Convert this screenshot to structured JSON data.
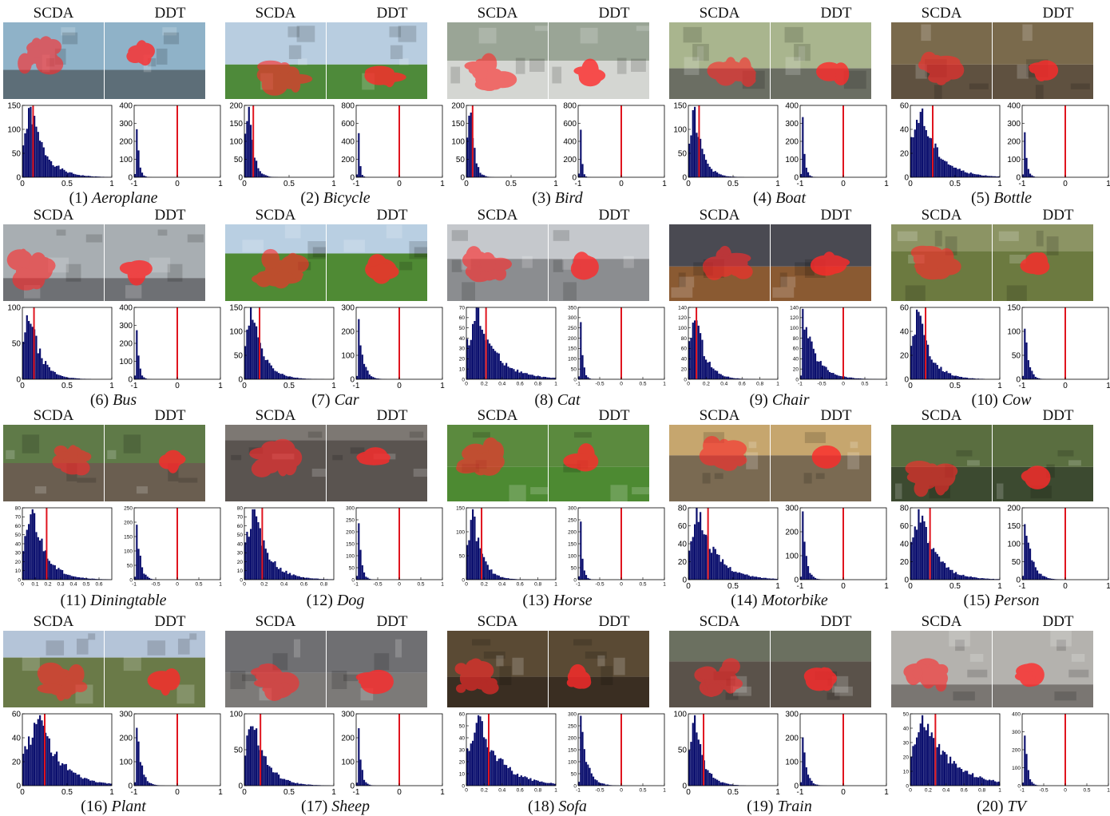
{
  "labels": {
    "left": "SCDA",
    "right": "DDT"
  },
  "colors": {
    "bar": "#0b0f6e",
    "threshold": "#e0141e",
    "mask": "#ff2a2a"
  },
  "panels": [
    {
      "num": "(1)",
      "name": "Aeroplane",
      "scene": {
        "sky": "#8fb2c8",
        "ground": "#5d6e78",
        "horizon": 0.62
      },
      "left_hist": {
        "ymax": 150,
        "yticks": [
          0,
          50,
          100,
          150
        ],
        "xmin": 0,
        "xmax": 1,
        "xticks": [
          0,
          0.5,
          1
        ],
        "threshold": 0.12,
        "decay": 0.16
      },
      "right_hist": {
        "ymax": 400,
        "yticks": [
          0,
          100,
          200,
          300,
          400
        ],
        "xmin": -1,
        "xmax": 1,
        "xticks": [
          -1,
          0,
          1
        ],
        "threshold": 0,
        "decay": 0.05
      }
    },
    {
      "num": "(2)",
      "name": "Bicycle",
      "scene": {
        "sky": "#b8cde0",
        "ground": "#4e8a3a",
        "horizon": 0.55
      },
      "left_hist": {
        "ymax": 200,
        "yticks": [
          0,
          50,
          100,
          150,
          200
        ],
        "xmin": 0,
        "xmax": 1,
        "xticks": [
          0,
          0.5,
          1
        ],
        "threshold": 0.1,
        "decay": 0.05
      },
      "right_hist": {
        "ymax": 800,
        "yticks": [
          0,
          200,
          400,
          600,
          800
        ],
        "xmin": -1,
        "xmax": 1,
        "xticks": [
          -1,
          0,
          1
        ],
        "threshold": 0,
        "decay": 0.03
      }
    },
    {
      "num": "(3)",
      "name": "Bird",
      "scene": {
        "sky": "#9aa596",
        "ground": "#d4d6d2",
        "horizon": 0.5
      },
      "left_hist": {
        "ymax": 200,
        "yticks": [
          0,
          50,
          100,
          150,
          200
        ],
        "xmin": 0,
        "xmax": 1,
        "xticks": [
          0,
          0.5,
          1
        ],
        "threshold": 0.07,
        "decay": 0.04
      },
      "right_hist": {
        "ymax": 800,
        "yticks": [
          0,
          200,
          400,
          600,
          800
        ],
        "xmin": -1,
        "xmax": 1,
        "xticks": [
          -1,
          0,
          1
        ],
        "threshold": 0,
        "decay": 0.03
      }
    },
    {
      "num": "(4)",
      "name": "Boat",
      "scene": {
        "sky": "#a9b58e",
        "ground": "#6b6e63",
        "horizon": 0.6
      },
      "left_hist": {
        "ymax": 150,
        "yticks": [
          0,
          50,
          100,
          150
        ],
        "xmin": 0,
        "xmax": 1,
        "xticks": [
          0,
          0.5,
          1
        ],
        "threshold": 0.12,
        "decay": 0.09
      },
      "right_hist": {
        "ymax": 400,
        "yticks": [
          0,
          100,
          200,
          300,
          400
        ],
        "xmin": -1,
        "xmax": 1,
        "xticks": [
          -1,
          0,
          1
        ],
        "threshold": 0,
        "decay": 0.05
      }
    },
    {
      "num": "(5)",
      "name": "Bottle",
      "scene": {
        "sky": "#7a6a4c",
        "ground": "#5f5140",
        "horizon": 0.55
      },
      "left_hist": {
        "ymax": 60,
        "yticks": [
          0,
          20,
          40,
          60
        ],
        "xmin": 0,
        "xmax": 1,
        "xticks": [
          0,
          0.5,
          1
        ],
        "threshold": 0.25,
        "decay": 0.2
      },
      "right_hist": {
        "ymax": 400,
        "yticks": [
          0,
          100,
          200,
          300,
          400
        ],
        "xmin": -1,
        "xmax": 1,
        "xticks": [
          -1,
          0,
          1
        ],
        "threshold": 0,
        "decay": 0.05
      }
    },
    {
      "num": "(6)",
      "name": "Bus",
      "scene": {
        "sky": "#a8aeb2",
        "ground": "#6e7074",
        "horizon": 0.7
      },
      "left_hist": {
        "ymax": 100,
        "yticks": [
          0,
          50,
          100
        ],
        "xmin": 0,
        "xmax": 1,
        "xticks": [
          0,
          0.5,
          1
        ],
        "threshold": 0.13,
        "decay": 0.12
      },
      "right_hist": {
        "ymax": 400,
        "yticks": [
          0,
          100,
          200,
          300,
          400
        ],
        "xmin": -1,
        "xmax": 1,
        "xticks": [
          -1,
          0,
          1
        ],
        "threshold": 0,
        "decay": 0.05
      }
    },
    {
      "num": "(7)",
      "name": "Car",
      "scene": {
        "sky": "#b9cfe2",
        "ground": "#4f8a34",
        "horizon": 0.38
      },
      "left_hist": {
        "ymax": 150,
        "yticks": [
          0,
          50,
          100,
          150
        ],
        "xmin": 0,
        "xmax": 1,
        "xticks": [
          0,
          0.5,
          1
        ],
        "threshold": 0.17,
        "decay": 0.13
      },
      "right_hist": {
        "ymax": 300,
        "yticks": [
          0,
          100,
          200,
          300
        ],
        "xmin": -1,
        "xmax": 1,
        "xticks": [
          -1,
          0,
          1
        ],
        "threshold": 0,
        "decay": 0.1
      }
    },
    {
      "num": "(8)",
      "name": "Cat",
      "scene": {
        "sky": "#c5c8cc",
        "ground": "#8b8d90",
        "horizon": 0.45
      },
      "left_hist": {
        "ymax": 70,
        "yticks": [
          0,
          10,
          20,
          30,
          40,
          50,
          60,
          70
        ],
        "xmin": 0,
        "xmax": 1,
        "xticks": [
          0,
          0.2,
          0.4,
          0.6,
          0.8,
          1
        ],
        "threshold": 0.22,
        "decay": 0.22
      },
      "right_hist": {
        "ymax": 350,
        "yticks": [
          0,
          50,
          100,
          150,
          200,
          250,
          300,
          350
        ],
        "xmin": -1,
        "xmax": 1,
        "xticks": [
          -1,
          -0.5,
          0,
          0.5,
          1
        ],
        "threshold": 0,
        "decay": 0.05
      }
    },
    {
      "num": "(9)",
      "name": "Chair",
      "scene": {
        "sky": "#4a4a52",
        "ground": "#8a5a32",
        "horizon": 0.55
      },
      "left_hist": {
        "ymax": 140,
        "yticks": [
          0,
          20,
          40,
          60,
          80,
          100,
          120,
          140
        ],
        "xmin": 0,
        "xmax": 1,
        "xticks": [
          0,
          0.2,
          0.4,
          0.6,
          0.8,
          1
        ],
        "threshold": 0.09,
        "decay": 0.11
      },
      "right_hist": {
        "ymax": 140,
        "yticks": [
          0,
          20,
          40,
          60,
          80,
          100,
          120,
          140
        ],
        "xmin": -1,
        "xmax": 1,
        "xticks": [
          -1,
          -0.5,
          0,
          0.5,
          1
        ],
        "threshold": 0,
        "decay": 0.3
      }
    },
    {
      "num": "(10)",
      "name": "Cow",
      "scene": {
        "sky": "#8c9464",
        "ground": "#6c7a40",
        "horizon": 0.35
      },
      "left_hist": {
        "ymax": 60,
        "yticks": [
          0,
          20,
          40,
          60
        ],
        "xmin": 0,
        "xmax": 1,
        "xticks": [
          0,
          0.5,
          1
        ],
        "threshold": 0.17,
        "decay": 0.14
      },
      "right_hist": {
        "ymax": 150,
        "yticks": [
          0,
          50,
          100,
          150
        ],
        "xmin": -1,
        "xmax": 1,
        "xticks": [
          -1,
          0,
          1
        ],
        "threshold": 0,
        "decay": 0.08
      }
    },
    {
      "num": "(11)",
      "name": "Diningtable",
      "scene": {
        "sky": "#5f7a48",
        "ground": "#6a5e50",
        "horizon": 0.5
      },
      "left_hist": {
        "ymax": 80,
        "yticks": [
          0,
          10,
          20,
          30,
          40,
          50,
          60,
          70,
          80
        ],
        "xmin": 0,
        "xmax": 0.7,
        "xticks": [
          0,
          0.1,
          0.2,
          0.3,
          0.4,
          0.5,
          0.6
        ],
        "threshold": 0.19,
        "decay": 0.11
      },
      "right_hist": {
        "ymax": 250,
        "yticks": [
          0,
          50,
          100,
          150,
          200,
          250
        ],
        "xmin": -1,
        "xmax": 1,
        "xticks": [
          -1,
          -0.5,
          0,
          0.5,
          1
        ],
        "threshold": 0,
        "decay": 0.08
      }
    },
    {
      "num": "(12)",
      "name": "Dog",
      "scene": {
        "sky": "#7d7873",
        "ground": "#5a5450",
        "horizon": 0.2
      },
      "left_hist": {
        "ymax": 80,
        "yticks": [
          0,
          10,
          20,
          30,
          40,
          50,
          60,
          70,
          80
        ],
        "xmin": 0,
        "xmax": 0.9,
        "xticks": [
          0,
          0.2,
          0.4,
          0.6,
          0.8
        ],
        "threshold": 0.18,
        "decay": 0.15
      },
      "right_hist": {
        "ymax": 300,
        "yticks": [
          0,
          50,
          100,
          150,
          200,
          250,
          300
        ],
        "xmin": -1,
        "xmax": 1,
        "xticks": [
          -1,
          -0.5,
          0,
          0.5,
          1
        ],
        "threshold": 0,
        "decay": 0.06
      }
    },
    {
      "num": "(13)",
      "name": "Horse",
      "scene": {
        "sky": "#5b8a3e",
        "ground": "#4d8a32",
        "horizon": 0.55
      },
      "left_hist": {
        "ymax": 150,
        "yticks": [
          0,
          50,
          100,
          150
        ],
        "xmin": 0,
        "xmax": 1,
        "xticks": [
          0,
          0.2,
          0.4,
          0.6,
          0.8,
          1
        ],
        "threshold": 0.17,
        "decay": 0.1
      },
      "right_hist": {
        "ymax": 300,
        "yticks": [
          0,
          50,
          100,
          150,
          200,
          250,
          300
        ],
        "xmin": -1,
        "xmax": 1,
        "xticks": [
          -1,
          -0.5,
          0,
          0.5,
          1
        ],
        "threshold": 0,
        "decay": 0.05
      }
    },
    {
      "num": "(14)",
      "name": "Motorbike",
      "scene": {
        "sky": "#c6a66e",
        "ground": "#7a6a52",
        "horizon": 0.4
      },
      "left_hist": {
        "ymax": 80,
        "yticks": [
          0,
          20,
          40,
          60,
          80
        ],
        "xmin": 0,
        "xmax": 1,
        "xticks": [
          0,
          0.5,
          1
        ],
        "threshold": 0.22,
        "decay": 0.2
      },
      "right_hist": {
        "ymax": 300,
        "yticks": [
          0,
          100,
          200,
          300
        ],
        "xmin": -1,
        "xmax": 1,
        "xticks": [
          -1,
          0,
          1
        ],
        "threshold": 0,
        "decay": 0.08
      }
    },
    {
      "num": "(15)",
      "name": "Person",
      "scene": {
        "sky": "#5a6e40",
        "ground": "#3c4a30",
        "horizon": 0.55
      },
      "left_hist": {
        "ymax": 80,
        "yticks": [
          0,
          20,
          40,
          60,
          80
        ],
        "xmin": 0,
        "xmax": 1,
        "xticks": [
          0,
          0.5,
          1
        ],
        "threshold": 0.22,
        "decay": 0.18
      },
      "right_hist": {
        "ymax": 200,
        "yticks": [
          0,
          50,
          100,
          150,
          200
        ],
        "xmin": -1,
        "xmax": 1,
        "xticks": [
          -1,
          0,
          1
        ],
        "threshold": 0,
        "decay": 0.15
      }
    },
    {
      "num": "(16)",
      "name": "Plant",
      "scene": {
        "sky": "#b4c4d8",
        "ground": "#6a7a48",
        "horizon": 0.35
      },
      "left_hist": {
        "ymax": 60,
        "yticks": [
          0,
          20,
          40,
          60
        ],
        "xmin": 0,
        "xmax": 1,
        "xticks": [
          0,
          0.5,
          1
        ],
        "threshold": 0.25,
        "decay": 0.22,
        "peak": 0.2
      },
      "right_hist": {
        "ymax": 300,
        "yticks": [
          0,
          100,
          200,
          300
        ],
        "xmin": -1,
        "xmax": 1,
        "xticks": [
          -1,
          0,
          1
        ],
        "threshold": 0,
        "decay": 0.1
      }
    },
    {
      "num": "(17)",
      "name": "Sheep",
      "scene": {
        "sky": "#6f6f72",
        "ground": "#7c7a78",
        "horizon": 0.55
      },
      "left_hist": {
        "ymax": 100,
        "yticks": [
          0,
          50,
          100
        ],
        "xmin": 0,
        "xmax": 1,
        "xticks": [
          0,
          0.5,
          1
        ],
        "threshold": 0.18,
        "decay": 0.15
      },
      "right_hist": {
        "ymax": 300,
        "yticks": [
          0,
          100,
          200,
          300
        ],
        "xmin": -1,
        "xmax": 1,
        "xticks": [
          -1,
          0,
          1
        ],
        "threshold": 0,
        "decay": 0.06
      }
    },
    {
      "num": "(18)",
      "name": "Sofa",
      "scene": {
        "sky": "#5a4a34",
        "ground": "#3a2e22",
        "horizon": 0.6
      },
      "left_hist": {
        "ymax": 60,
        "yticks": [
          0,
          10,
          20,
          30,
          40,
          50,
          60
        ],
        "xmin": 0,
        "xmax": 1,
        "xticks": [
          0,
          0.2,
          0.4,
          0.6,
          0.8,
          1
        ],
        "threshold": 0.25,
        "decay": 0.25
      },
      "right_hist": {
        "ymax": 300,
        "yticks": [
          0,
          50,
          100,
          150,
          200,
          250,
          300
        ],
        "xmin": -1,
        "xmax": 1,
        "xticks": [
          -1,
          -0.5,
          0,
          0.5,
          1
        ],
        "threshold": 0,
        "decay": 0.15
      }
    },
    {
      "num": "(19)",
      "name": "Train",
      "scene": {
        "sky": "#6b7060",
        "ground": "#5a524a",
        "horizon": 0.4
      },
      "left_hist": {
        "ymax": 100,
        "yticks": [
          0,
          50,
          100
        ],
        "xmin": 0,
        "xmax": 1,
        "xticks": [
          0,
          0.5,
          1
        ],
        "threshold": 0.17,
        "decay": 0.1
      },
      "right_hist": {
        "ymax": 300,
        "yticks": [
          0,
          100,
          200,
          300
        ],
        "xmin": -1,
        "xmax": 1,
        "xticks": [
          -1,
          0,
          1
        ],
        "threshold": 0,
        "decay": 0.08
      }
    },
    {
      "num": "(20)",
      "name": "TV",
      "scene": {
        "sky": "#b4b2ae",
        "ground": "#7a7672",
        "horizon": 0.7
      },
      "left_hist": {
        "ymax": 50,
        "yticks": [
          0,
          10,
          20,
          30,
          40,
          50
        ],
        "xmin": 0,
        "xmax": 1,
        "xticks": [
          0,
          0.2,
          0.4,
          0.6,
          0.8,
          1
        ],
        "threshold": 0.28,
        "decay": 0.3
      },
      "right_hist": {
        "ymax": 400,
        "yticks": [
          0,
          100,
          200,
          300,
          400
        ],
        "xmin": -1,
        "xmax": 1,
        "xticks": [
          -1,
          -0.5,
          0,
          0.5,
          1
        ],
        "threshold": 0,
        "decay": 0.06
      }
    }
  ]
}
